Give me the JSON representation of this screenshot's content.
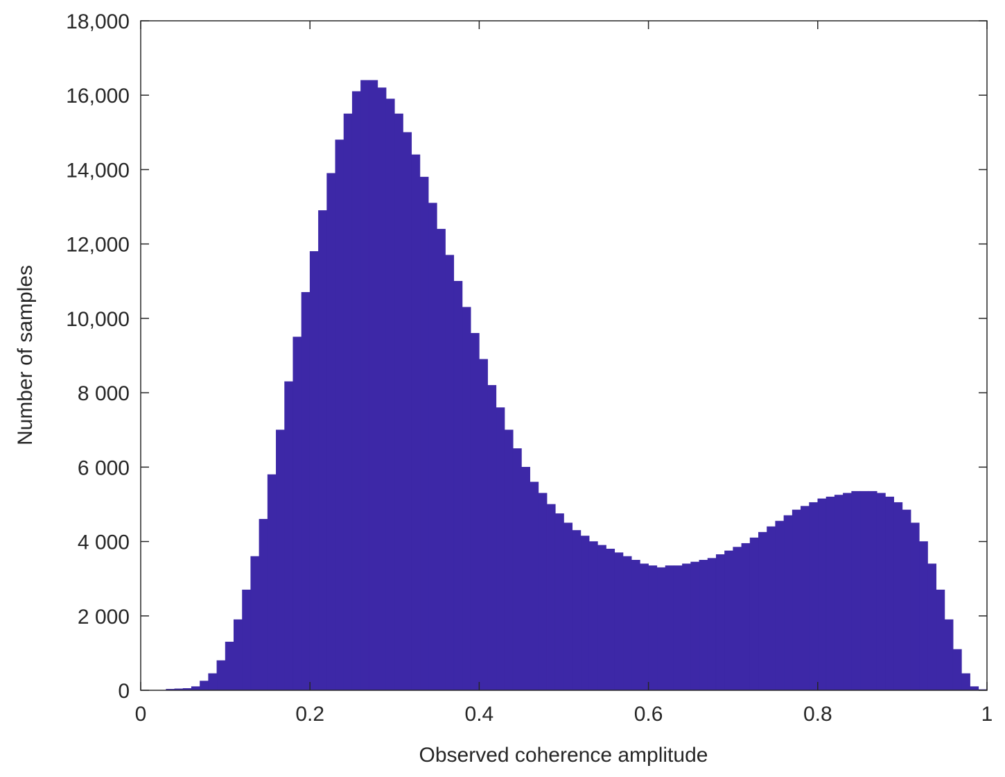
{
  "chart_data": {
    "type": "histogram",
    "xlabel": "Observed coherence amplitude",
    "ylabel": "Number of samples",
    "color": "#3d28a7",
    "bins": [
      0.03,
      0.04,
      0.05,
      0.06,
      0.07,
      0.08,
      0.09,
      0.1,
      0.11,
      0.12,
      0.13,
      0.14,
      0.15,
      0.16,
      0.17,
      0.18,
      0.19,
      0.2,
      0.21,
      0.22,
      0.23,
      0.24,
      0.25,
      0.26,
      0.27,
      0.28,
      0.29,
      0.3,
      0.31,
      0.32,
      0.33,
      0.34,
      0.35,
      0.36,
      0.37,
      0.38,
      0.39,
      0.4,
      0.41,
      0.42,
      0.43,
      0.44,
      0.45,
      0.46,
      0.47,
      0.48,
      0.49,
      0.5,
      0.51,
      0.52,
      0.53,
      0.54,
      0.55,
      0.56,
      0.57,
      0.58,
      0.59,
      0.6,
      0.61,
      0.62,
      0.63,
      0.64,
      0.65,
      0.66,
      0.67,
      0.68,
      0.69,
      0.7,
      0.71,
      0.72,
      0.73,
      0.74,
      0.75,
      0.76,
      0.77,
      0.78,
      0.79,
      0.8,
      0.81,
      0.82,
      0.83,
      0.84,
      0.85,
      0.86,
      0.87,
      0.88,
      0.89,
      0.9,
      0.91,
      0.92,
      0.93,
      0.94,
      0.95,
      0.96,
      0.97,
      0.98,
      0.99,
      1
    ],
    "counts": [
      30,
      40,
      50,
      100,
      250,
      450,
      800,
      1300,
      1900,
      2700,
      3600,
      4600,
      5800,
      7000,
      8300,
      9500,
      10700,
      11800,
      12900,
      13900,
      14800,
      15500,
      16100,
      16400,
      16400,
      16200,
      15900,
      15500,
      15000,
      14400,
      13800,
      13100,
      12400,
      11700,
      11000,
      10300,
      9600,
      8900,
      8200,
      7600,
      7000,
      6500,
      6000,
      5600,
      5300,
      5000,
      4750,
      4500,
      4300,
      4150,
      4000,
      3900,
      3800,
      3700,
      3600,
      3500,
      3400,
      3350,
      3300,
      3350,
      3350,
      3400,
      3450,
      3500,
      3550,
      3650,
      3750,
      3850,
      3950,
      4100,
      4250,
      4400,
      4550,
      4700,
      4850,
      4950,
      5050,
      5150,
      5200,
      5250,
      5300,
      5350,
      5350,
      5350,
      5300,
      5200,
      5050,
      4850,
      4500,
      4000,
      3400,
      2700,
      1900,
      1100,
      450,
      100,
      20
    ],
    "xlim": [
      0,
      1
    ],
    "xticks": [
      0,
      0.2,
      0.4,
      0.6,
      0.8,
      1
    ],
    "ylim": [
      0,
      18000
    ],
    "yticks": [
      0,
      {
        "value": 2000,
        "label": "2 000"
      },
      {
        "value": 4000,
        "label": "4 000"
      },
      {
        "value": 6000,
        "label": "6 000"
      },
      {
        "value": 8000,
        "label": "8 000"
      },
      {
        "value": 10000,
        "label": "10,000"
      },
      {
        "value": 12000,
        "label": "12,000"
      },
      {
        "value": 14000,
        "label": "14,000"
      },
      {
        "value": 16000,
        "label": "16,000"
      },
      {
        "value": 18000,
        "label": "18,000"
      }
    ]
  }
}
